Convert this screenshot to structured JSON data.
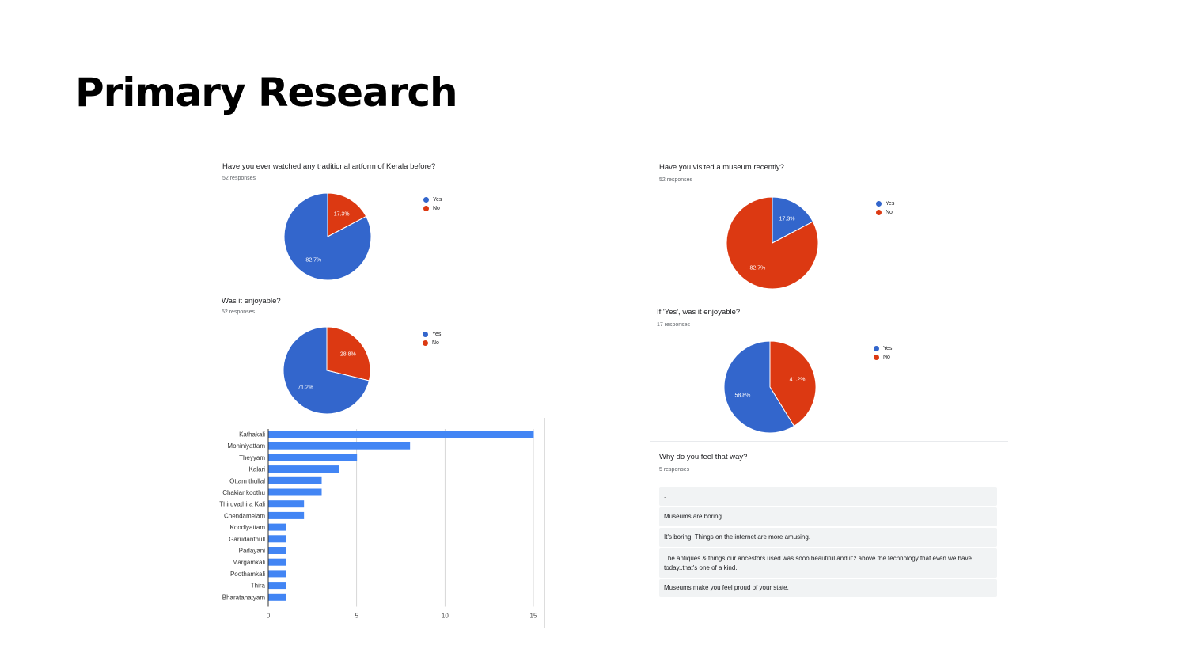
{
  "page": {
    "title": "Primary Research"
  },
  "colors": {
    "yes": "#3366cc",
    "no": "#dc3912",
    "bar": "#4285f4"
  },
  "chart_data": [
    {
      "type": "pie",
      "title": "Have you ever watched any traditional artform of Kerala before?",
      "subtitle": "52 responses",
      "legend": [
        "Yes",
        "No"
      ],
      "legend_position": "right",
      "slices": [
        {
          "label": "Yes",
          "value": 82.7,
          "text": "82.7%"
        },
        {
          "label": "No",
          "value": 17.3,
          "text": "17.3%"
        }
      ]
    },
    {
      "type": "pie",
      "title": "Was it enjoyable?",
      "subtitle": "52 responses",
      "legend": [
        "Yes",
        "No"
      ],
      "legend_position": "right",
      "slices": [
        {
          "label": "Yes",
          "value": 71.2,
          "text": "71.2%"
        },
        {
          "label": "No",
          "value": 28.8,
          "text": "28.8%"
        }
      ]
    },
    {
      "type": "pie",
      "title": "Have you visited a museum recently?",
      "subtitle": "52 responses",
      "legend": [
        "Yes",
        "No"
      ],
      "legend_position": "right",
      "slices": [
        {
          "label": "Yes",
          "value": 17.3,
          "text": "17.3%"
        },
        {
          "label": "No",
          "value": 82.7,
          "text": "82.7%"
        }
      ]
    },
    {
      "type": "pie",
      "title": "If 'Yes', was it enjoyable?",
      "subtitle": "17 responses",
      "legend": [
        "Yes",
        "No"
      ],
      "legend_position": "right",
      "slices": [
        {
          "label": "Yes",
          "value": 58.8,
          "text": "58.8%"
        },
        {
          "label": "No",
          "value": 41.2,
          "text": "41.2%"
        }
      ]
    },
    {
      "type": "bar",
      "orientation": "horizontal",
      "categories": [
        "Kathakali",
        "Mohiniyattam",
        "Theyyam",
        "Kalari",
        "Ottam thullal",
        "Chakiar koothu",
        "Thiruvathira Kali",
        "Chendamelam",
        "Koodiyattam",
        "Garudanthull",
        "Padayani",
        "Margamkali",
        "Poothamkali",
        "Thira",
        "Bharatanatyam"
      ],
      "values": [
        15,
        8,
        5,
        4,
        3,
        3,
        2,
        2,
        1,
        1,
        1,
        1,
        1,
        1,
        1
      ],
      "xlim": [
        0,
        15
      ],
      "xticks": [
        0,
        5,
        10,
        15
      ],
      "grid": true
    }
  ],
  "responses": {
    "title": "Why do you feel that way?",
    "subtitle": "5 responses",
    "items": [
      ".",
      "Museums are boring",
      "It's boring. Things on the internet are more amusing.",
      "The antiques & things our ancestors used was sooo beautiful and it'z above the technology that even we have today..that's one of a kind..",
      "Museums make you feel proud of your state."
    ]
  }
}
